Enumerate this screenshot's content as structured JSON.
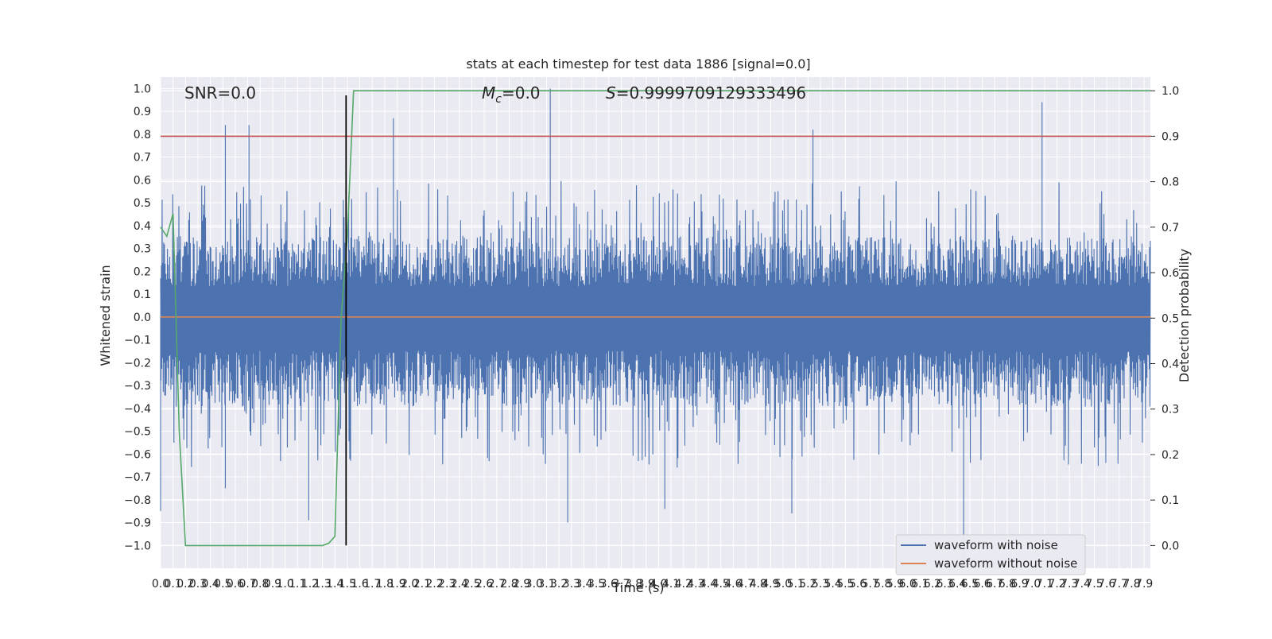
{
  "chart_data": {
    "type": "line",
    "title": "stats at each timestep for test data 1886 [signal=0.0]",
    "xlabel": "Time (s)",
    "ylabel": "Whitened strain",
    "y2label": "Detection probability",
    "xlim": [
      0,
      7.95
    ],
    "ylim": [
      -1.1,
      1.05
    ],
    "y2lim": [
      -0.05,
      1.03
    ],
    "x_ticks": [
      0.0,
      0.1,
      0.2,
      0.3,
      0.4,
      0.5,
      0.6,
      0.7,
      0.8,
      0.9,
      1.0,
      1.1,
      1.2,
      1.3,
      1.4,
      1.5,
      1.6,
      1.7,
      1.8,
      1.9,
      2.0,
      2.1,
      2.2,
      2.3,
      2.4,
      2.5,
      2.6,
      2.7,
      2.8,
      2.9,
      3.0,
      3.1,
      3.2,
      3.3,
      3.4,
      3.5,
      3.6,
      3.7,
      3.8,
      3.9,
      4.0,
      4.1,
      4.2,
      4.3,
      4.4,
      4.5,
      4.6,
      4.7,
      4.8,
      4.9,
      5.0,
      5.1,
      5.2,
      5.3,
      5.4,
      5.5,
      5.6,
      5.7,
      5.8,
      5.9,
      6.0,
      6.1,
      6.2,
      6.3,
      6.4,
      6.5,
      6.6,
      6.7,
      6.8,
      6.9,
      7.0,
      7.1,
      7.2,
      7.3,
      7.4,
      7.5,
      7.6,
      7.7,
      7.8,
      7.9
    ],
    "x_tick_labels": [
      "0.0",
      "0.1",
      "0.2",
      "0.3",
      "0.4",
      "0.5",
      "0.6",
      "0.7",
      "0.8",
      "0.9",
      "1.0",
      "1.1",
      "1.2",
      "1.3",
      "1.4",
      "1.5",
      "1.6",
      "1.7",
      "1.8",
      "1.9",
      "2.0",
      "2.1",
      "2.2",
      "2.3",
      "2.4",
      "2.5",
      "2.6",
      "2.7",
      "2.8",
      "2.9",
      "3.0",
      "3.1",
      "3.2",
      "3.3",
      "3.4",
      "3.5",
      "3.6",
      "3.7",
      "3.8",
      "3.9",
      "4.0",
      "4.1",
      "4.2",
      "4.3",
      "4.4",
      "4.5",
      "4.6",
      "4.7",
      "4.8",
      "4.9",
      "5.0",
      "5.1",
      "5.2",
      "5.3",
      "5.4",
      "5.5",
      "5.6",
      "5.7",
      "5.8",
      "5.9",
      "6.0",
      "6.1",
      "6.2",
      "6.3",
      "6.4",
      "6.5",
      "6.6",
      "6.7",
      "6.8",
      "6.9",
      "7.0",
      "7.1",
      "7.2",
      "7.3",
      "7.4",
      "7.5",
      "7.6",
      "7.7",
      "7.8",
      "7.9"
    ],
    "y_ticks": [
      1.0,
      0.9,
      0.8,
      0.7,
      0.6,
      0.5,
      0.4,
      0.3,
      0.2,
      0.1,
      0.0,
      -0.1,
      -0.2,
      -0.3,
      -0.4,
      -0.5,
      -0.6,
      -0.7,
      -0.8,
      -0.9,
      -1.0
    ],
    "y_tick_labels": [
      "1.0",
      "0.9",
      "0.8",
      "0.7",
      "0.6",
      "0.5",
      "0.4",
      "0.3",
      "0.2",
      "0.1",
      "0.0",
      "−0.1",
      "−0.2",
      "−0.3",
      "−0.4",
      "−0.5",
      "−0.6",
      "−0.7",
      "−0.8",
      "−0.9",
      "−1.0"
    ],
    "y2_ticks": [
      1.0,
      0.9,
      0.8,
      0.7,
      0.6,
      0.5,
      0.4,
      0.3,
      0.2,
      0.1,
      0.0
    ],
    "y2_tick_labels": [
      "1.0",
      "0.9",
      "0.8",
      "0.7",
      "0.6",
      "0.5",
      "0.4",
      "0.3",
      "0.2",
      "0.1",
      "0.0"
    ],
    "grid": true,
    "legend_position": "bottom-right",
    "annotations": {
      "snr": "SNR=0.0",
      "mc_symbol": "M",
      "mc_sub": "c",
      "mc_value": "=0.0",
      "s": "S=0.9999709129333496"
    },
    "series": [
      {
        "name": "waveform with noise",
        "axis": "left",
        "color": "#4c72b0",
        "kind": "noise",
        "x_range": [
          0,
          7.95
        ],
        "band": [
          -0.42,
          0.38
        ],
        "peaks": [
          {
            "x": 0.52,
            "y": 0.84
          },
          {
            "x": 0.71,
            "y": 0.84
          },
          {
            "x": 1.87,
            "y": 0.87
          },
          {
            "x": 3.13,
            "y": 1.0
          },
          {
            "x": 7.08,
            "y": 0.94
          },
          {
            "x": 5.24,
            "y": 0.82
          },
          {
            "x": 0.0,
            "y": -0.85
          },
          {
            "x": 1.19,
            "y": -0.89
          },
          {
            "x": 3.27,
            "y": -0.9
          },
          {
            "x": 5.07,
            "y": -0.86
          },
          {
            "x": 6.45,
            "y": -1.05
          },
          {
            "x": 4.05,
            "y": -0.84
          },
          {
            "x": 0.52,
            "y": -0.75
          }
        ]
      },
      {
        "name": "waveform without noise",
        "axis": "left",
        "color": "#dd8452",
        "x": [
          0,
          7.95
        ],
        "y": [
          0.0,
          0.0
        ]
      },
      {
        "axis": "right",
        "color": "#55a868",
        "x": [
          0.0,
          0.05,
          0.1,
          0.15,
          0.2,
          0.3,
          0.5,
          1.0,
          1.3,
          1.35,
          1.4,
          1.45,
          1.5,
          1.55,
          1.6,
          7.95
        ],
        "y": [
          0.7,
          0.68,
          0.73,
          0.25,
          0.0,
          0.0,
          0.0,
          0.0,
          0.0,
          0.005,
          0.02,
          0.5,
          0.68,
          1.0,
          1.0,
          1.0
        ]
      }
    ],
    "reference_lines": [
      {
        "orientation": "horizontal",
        "axis": "right",
        "value": 0.9,
        "color": "#c44e52"
      },
      {
        "orientation": "vertical",
        "axis": "left",
        "value": 1.49,
        "from": -1.0,
        "to": 0.97,
        "color": "#000000"
      }
    ]
  }
}
